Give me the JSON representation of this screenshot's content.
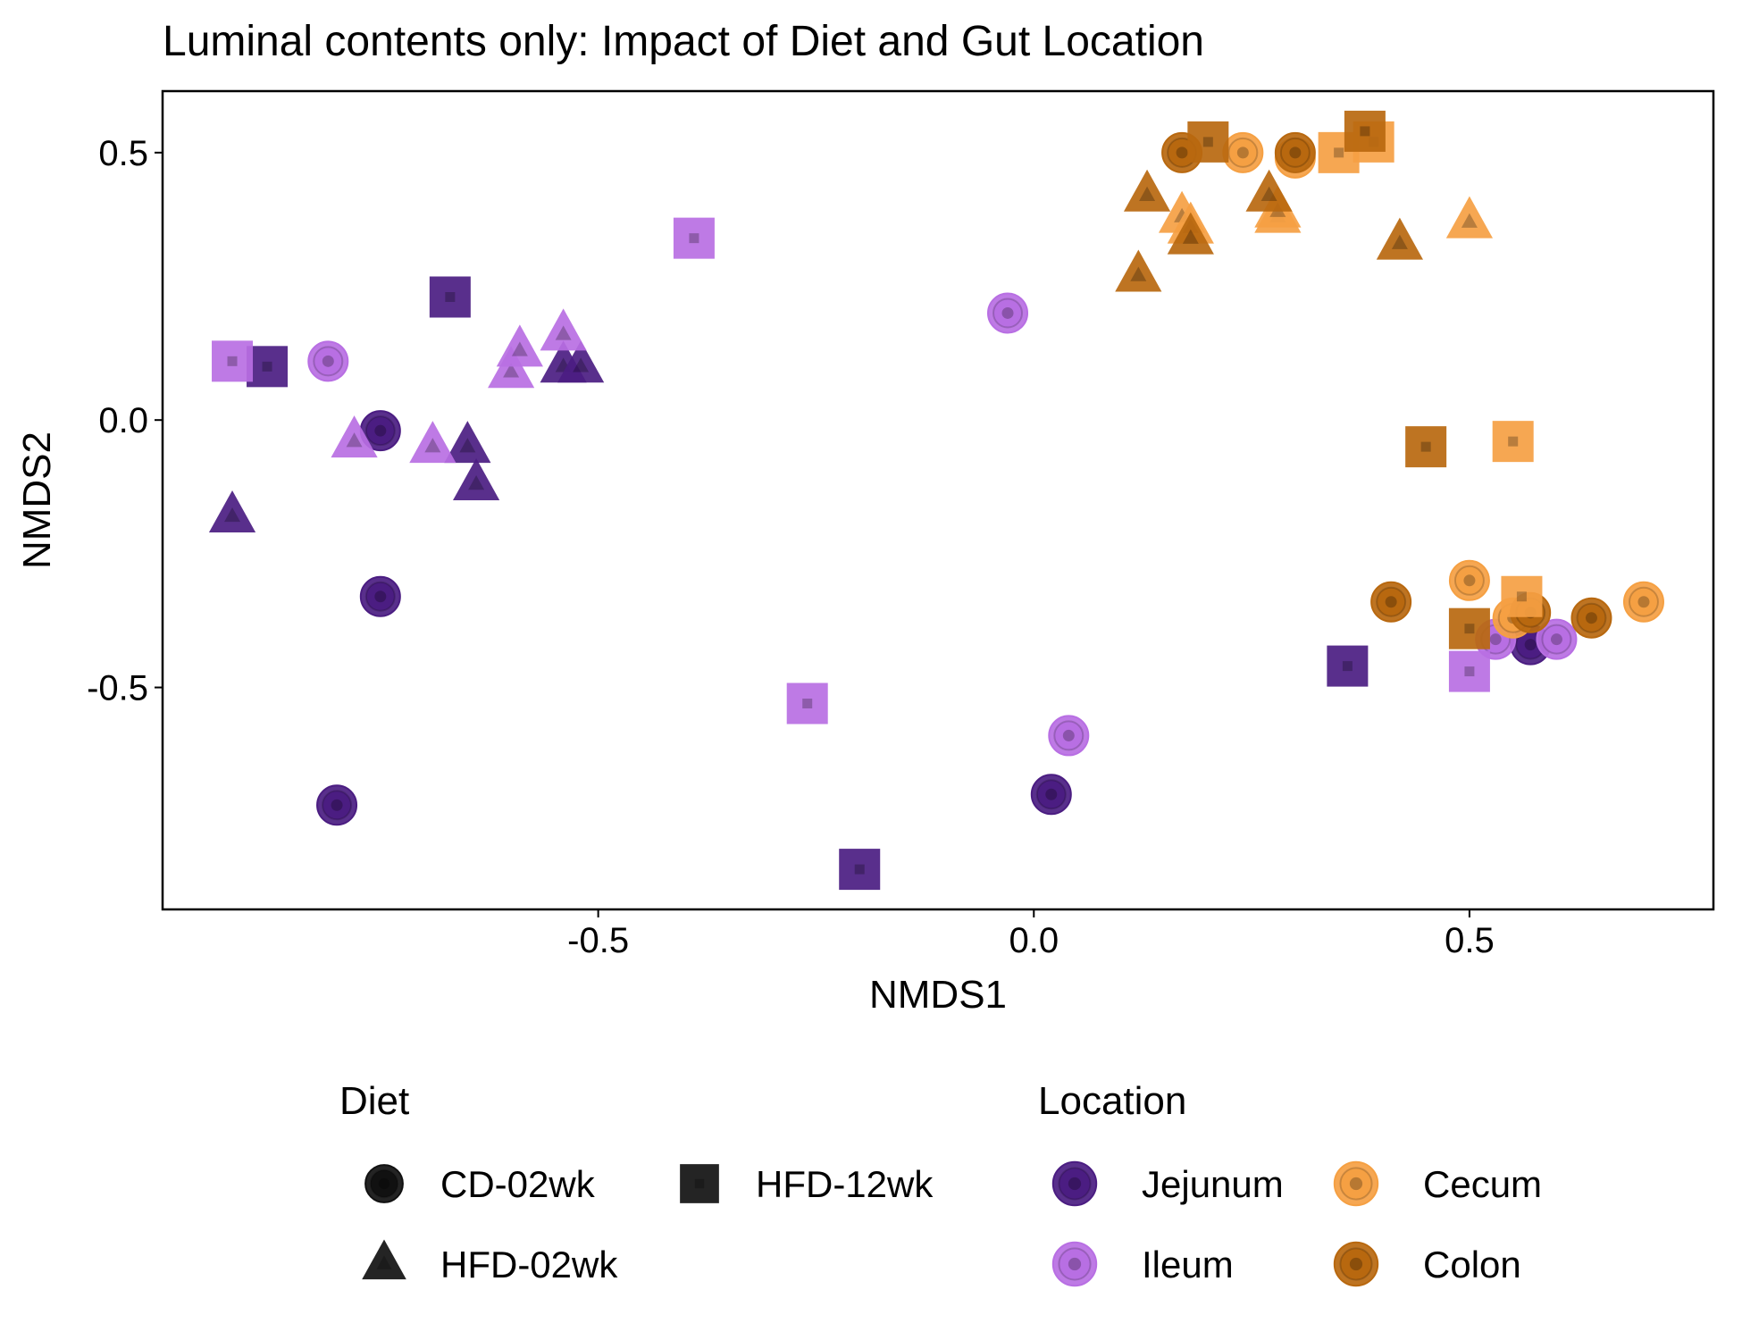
{
  "chart_data": {
    "type": "scatter",
    "title": "Luminal contents only: Impact of Diet and Gut Location",
    "xlabel": "NMDS1",
    "ylabel": "NMDS2",
    "xlim": [
      -1.0,
      0.78
    ],
    "ylim": [
      -0.915,
      0.615
    ],
    "x_ticks": [
      "-0.5",
      "0.0",
      "0.5"
    ],
    "x_tick_values": [
      -0.5,
      0.0,
      0.5
    ],
    "y_ticks": [
      "-0.5",
      "0.0",
      "0.5"
    ],
    "y_tick_values": [
      -0.5,
      0.0,
      0.5
    ],
    "grid": false,
    "legend_position": "bottom",
    "legend": {
      "shape": {
        "title": "Diet",
        "items": [
          {
            "label": "CD-02wk",
            "shape": "circle"
          },
          {
            "label": "HFD-12wk",
            "shape": "square"
          },
          {
            "label": "HFD-02wk",
            "shape": "triangle"
          }
        ]
      },
      "color": {
        "title": "Location",
        "items": [
          {
            "label": "Jejunum",
            "color": "#4B1D82"
          },
          {
            "label": "Cecum",
            "color": "#F5A043"
          },
          {
            "label": "Ileum",
            "color": "#B86FE3"
          },
          {
            "label": "Colon",
            "color": "#B8680F"
          }
        ]
      }
    },
    "colors": {
      "Jejunum": "#4B1D82",
      "Ileum": "#B86FE3",
      "Cecum": "#F5A043",
      "Colon": "#B8680F"
    },
    "points": [
      {
        "x": -0.75,
        "y": -0.02,
        "diet": "CD-02wk",
        "location": "Jejunum"
      },
      {
        "x": -0.75,
        "y": -0.33,
        "diet": "CD-02wk",
        "location": "Jejunum"
      },
      {
        "x": -0.8,
        "y": -0.72,
        "diet": "CD-02wk",
        "location": "Jejunum"
      },
      {
        "x": 0.02,
        "y": -0.7,
        "diet": "CD-02wk",
        "location": "Jejunum"
      },
      {
        "x": 0.57,
        "y": -0.42,
        "diet": "CD-02wk",
        "location": "Jejunum"
      },
      {
        "x": -0.81,
        "y": 0.11,
        "diet": "CD-02wk",
        "location": "Ileum"
      },
      {
        "x": -0.03,
        "y": 0.2,
        "diet": "CD-02wk",
        "location": "Ileum"
      },
      {
        "x": 0.04,
        "y": -0.59,
        "diet": "CD-02wk",
        "location": "Ileum"
      },
      {
        "x": 0.53,
        "y": -0.41,
        "diet": "CD-02wk",
        "location": "Ileum"
      },
      {
        "x": 0.6,
        "y": -0.41,
        "diet": "CD-02wk",
        "location": "Ileum"
      },
      {
        "x": 0.24,
        "y": 0.5,
        "diet": "CD-02wk",
        "location": "Cecum"
      },
      {
        "x": 0.3,
        "y": 0.49,
        "diet": "CD-02wk",
        "location": "Cecum"
      },
      {
        "x": 0.5,
        "y": -0.3,
        "diet": "CD-02wk",
        "location": "Cecum"
      },
      {
        "x": 0.55,
        "y": -0.37,
        "diet": "CD-02wk",
        "location": "Cecum"
      },
      {
        "x": 0.7,
        "y": -0.34,
        "diet": "CD-02wk",
        "location": "Cecum"
      },
      {
        "x": 0.17,
        "y": 0.5,
        "diet": "CD-02wk",
        "location": "Colon"
      },
      {
        "x": 0.3,
        "y": 0.5,
        "diet": "CD-02wk",
        "location": "Colon"
      },
      {
        "x": 0.41,
        "y": -0.34,
        "diet": "CD-02wk",
        "location": "Colon"
      },
      {
        "x": 0.57,
        "y": -0.36,
        "diet": "CD-02wk",
        "location": "Colon"
      },
      {
        "x": 0.64,
        "y": -0.37,
        "diet": "CD-02wk",
        "location": "Colon"
      },
      {
        "x": -0.88,
        "y": 0.1,
        "diet": "HFD-12wk",
        "location": "Jejunum"
      },
      {
        "x": -0.67,
        "y": 0.23,
        "diet": "HFD-12wk",
        "location": "Jejunum"
      },
      {
        "x": -0.2,
        "y": -0.84,
        "diet": "HFD-12wk",
        "location": "Jejunum"
      },
      {
        "x": 0.36,
        "y": -0.46,
        "diet": "HFD-12wk",
        "location": "Jejunum"
      },
      {
        "x": -0.92,
        "y": 0.11,
        "diet": "HFD-12wk",
        "location": "Ileum"
      },
      {
        "x": -0.39,
        "y": 0.34,
        "diet": "HFD-12wk",
        "location": "Ileum"
      },
      {
        "x": -0.26,
        "y": -0.53,
        "diet": "HFD-12wk",
        "location": "Ileum"
      },
      {
        "x": 0.5,
        "y": -0.47,
        "diet": "HFD-12wk",
        "location": "Ileum"
      },
      {
        "x": 0.35,
        "y": 0.5,
        "diet": "HFD-12wk",
        "location": "Cecum"
      },
      {
        "x": 0.39,
        "y": 0.52,
        "diet": "HFD-12wk",
        "location": "Cecum"
      },
      {
        "x": 0.55,
        "y": -0.04,
        "diet": "HFD-12wk",
        "location": "Cecum"
      },
      {
        "x": 0.56,
        "y": -0.33,
        "diet": "HFD-12wk",
        "location": "Cecum"
      },
      {
        "x": 0.2,
        "y": 0.52,
        "diet": "HFD-12wk",
        "location": "Colon"
      },
      {
        "x": 0.38,
        "y": 0.54,
        "diet": "HFD-12wk",
        "location": "Colon"
      },
      {
        "x": 0.45,
        "y": -0.05,
        "diet": "HFD-12wk",
        "location": "Colon"
      },
      {
        "x": 0.5,
        "y": -0.39,
        "diet": "HFD-12wk",
        "location": "Colon"
      },
      {
        "x": -0.92,
        "y": -0.18,
        "diet": "HFD-02wk",
        "location": "Jejunum"
      },
      {
        "x": -0.65,
        "y": -0.05,
        "diet": "HFD-02wk",
        "location": "Jejunum"
      },
      {
        "x": -0.64,
        "y": -0.12,
        "diet": "HFD-02wk",
        "location": "Jejunum"
      },
      {
        "x": -0.54,
        "y": 0.1,
        "diet": "HFD-02wk",
        "location": "Jejunum"
      },
      {
        "x": -0.52,
        "y": 0.1,
        "diet": "HFD-02wk",
        "location": "Jejunum"
      },
      {
        "x": -0.78,
        "y": -0.04,
        "diet": "HFD-02wk",
        "location": "Ileum"
      },
      {
        "x": -0.69,
        "y": -0.05,
        "diet": "HFD-02wk",
        "location": "Ileum"
      },
      {
        "x": -0.6,
        "y": 0.09,
        "diet": "HFD-02wk",
        "location": "Ileum"
      },
      {
        "x": -0.59,
        "y": 0.13,
        "diet": "HFD-02wk",
        "location": "Ileum"
      },
      {
        "x": -0.54,
        "y": 0.16,
        "diet": "HFD-02wk",
        "location": "Ileum"
      },
      {
        "x": 0.17,
        "y": 0.38,
        "diet": "HFD-02wk",
        "location": "Cecum"
      },
      {
        "x": 0.18,
        "y": 0.36,
        "diet": "HFD-02wk",
        "location": "Cecum"
      },
      {
        "x": 0.28,
        "y": 0.38,
        "diet": "HFD-02wk",
        "location": "Cecum"
      },
      {
        "x": 0.28,
        "y": 0.39,
        "diet": "HFD-02wk",
        "location": "Cecum"
      },
      {
        "x": 0.5,
        "y": 0.37,
        "diet": "HFD-02wk",
        "location": "Cecum"
      },
      {
        "x": 0.13,
        "y": 0.42,
        "diet": "HFD-02wk",
        "location": "Colon"
      },
      {
        "x": 0.12,
        "y": 0.27,
        "diet": "HFD-02wk",
        "location": "Colon"
      },
      {
        "x": 0.18,
        "y": 0.34,
        "diet": "HFD-02wk",
        "location": "Colon"
      },
      {
        "x": 0.27,
        "y": 0.42,
        "diet": "HFD-02wk",
        "location": "Colon"
      },
      {
        "x": 0.42,
        "y": 0.33,
        "diet": "HFD-02wk",
        "location": "Colon"
      }
    ]
  }
}
